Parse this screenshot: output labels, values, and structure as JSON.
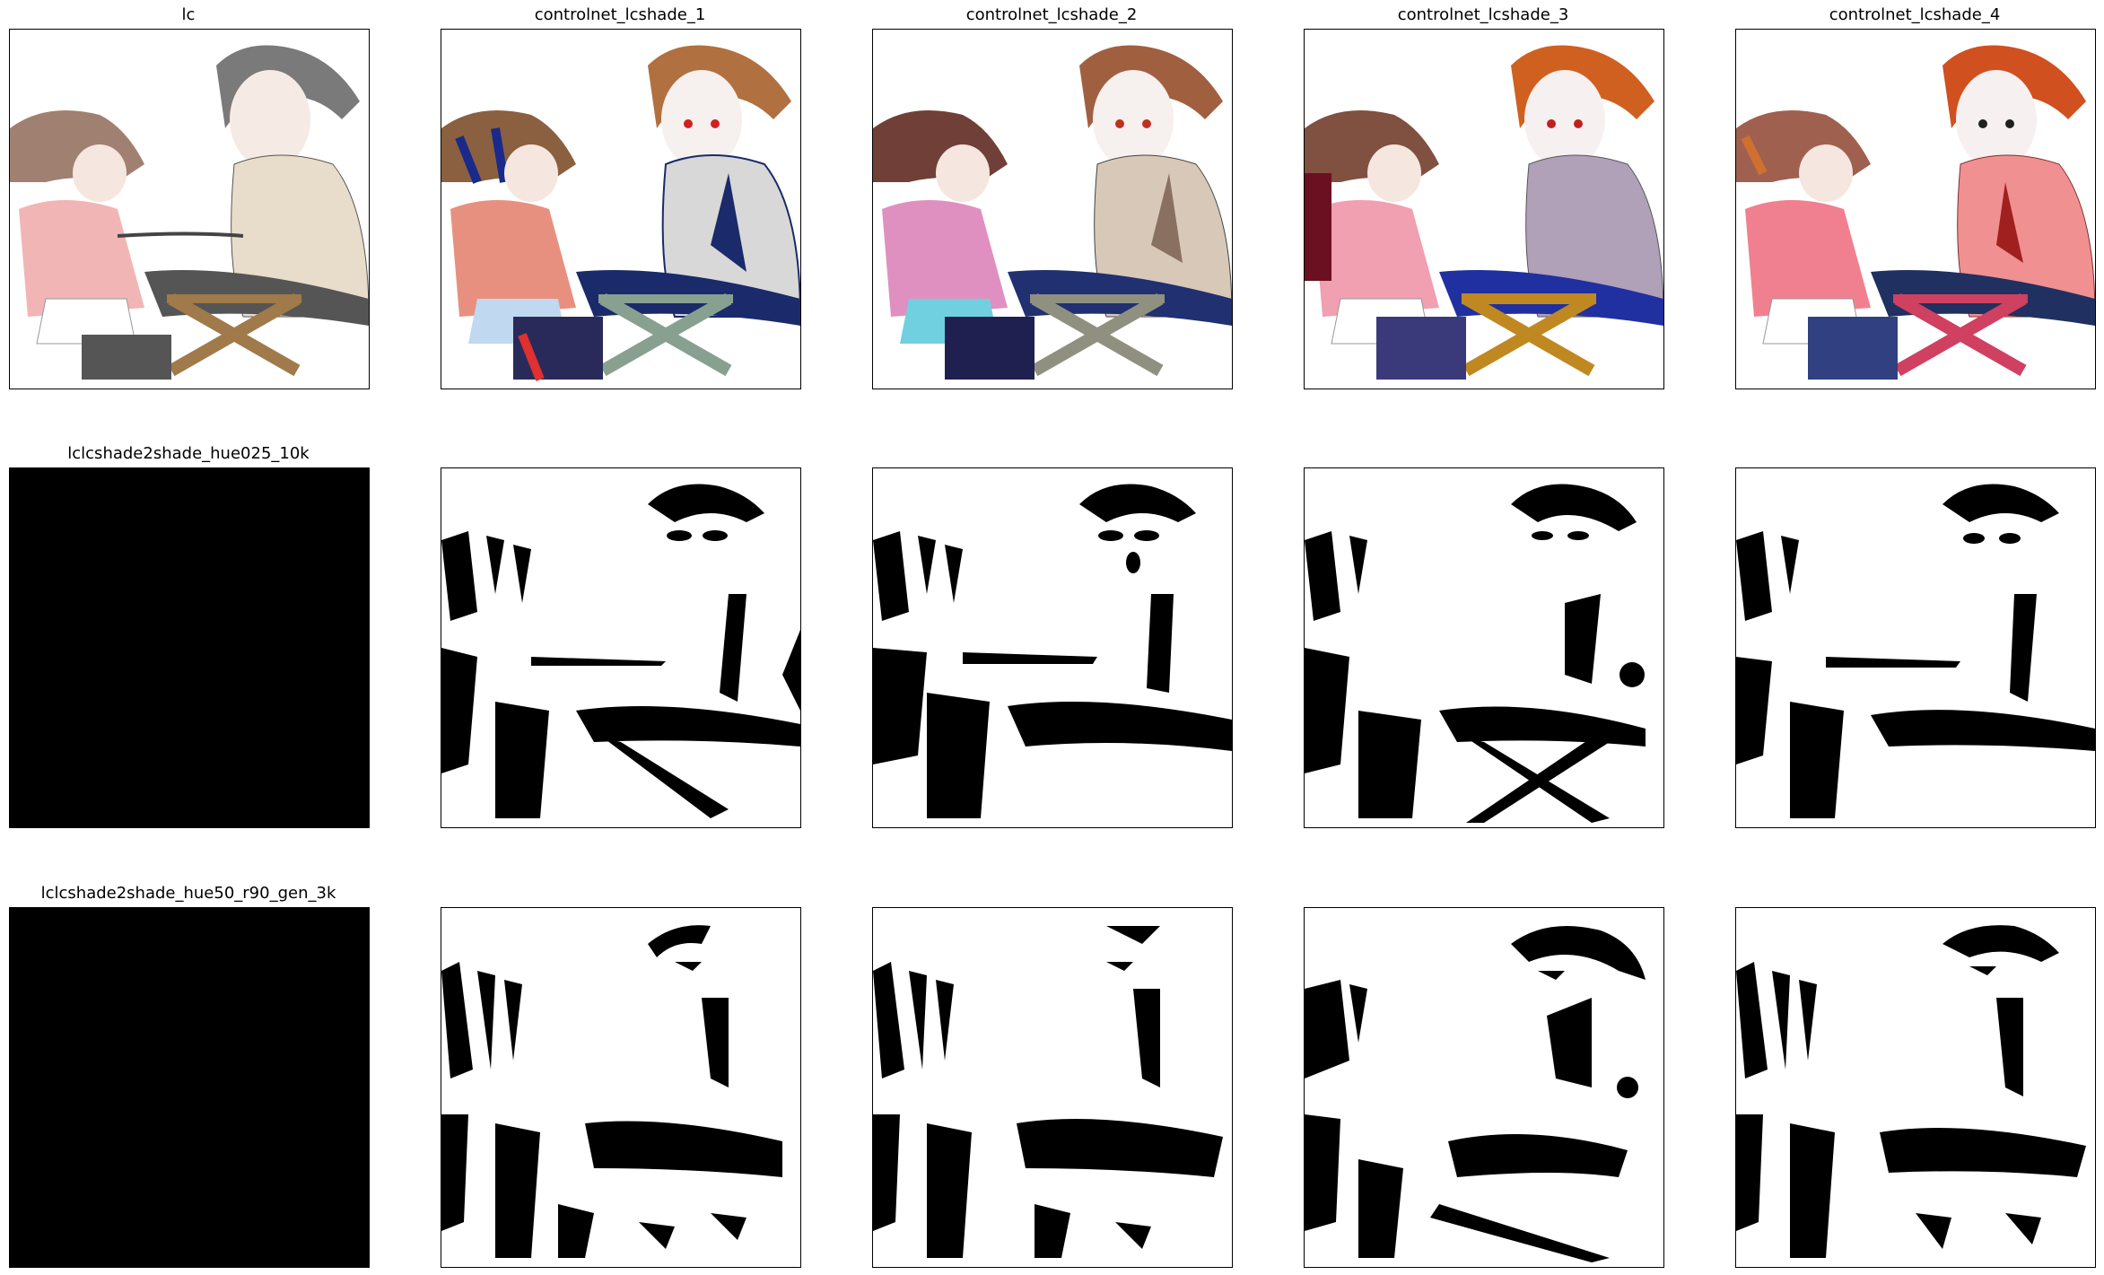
{
  "figure": {
    "columns": [
      "lc",
      "controlnet_lcshade_1",
      "controlnet_lcshade_2",
      "controlnet_lcshade_3",
      "controlnet_lcshade_4"
    ],
    "row_labels": [
      "",
      "lclcshade2shade_hue025_10k",
      "lclcshade2shade_hue50_r90_gen_3k"
    ],
    "palettes": {
      "lc": {
        "hair1": "#a08070",
        "hair2": "#7a7a7a",
        "shirt": "#e8dccb",
        "pants": "#555555",
        "dress": "#f2b5b5",
        "stool": "#a07a4a"
      },
      "controlnet_lcshade_1": {
        "hair1": "#8a6040",
        "hair2": "#b07040",
        "shirt": "#d8d8d8",
        "pants": "#1a2a6a",
        "dress": "#e89080",
        "stool": "#88a090"
      },
      "controlnet_lcshade_2": {
        "hair1": "#704038",
        "hair2": "#a06040",
        "shirt": "#d8c8b8",
        "pants": "#203070",
        "dress": "#e090c0",
        "stool": "#909080"
      },
      "controlnet_lcshade_3": {
        "hair1": "#805040",
        "hair2": "#d06020",
        "shirt": "#b0a0b8",
        "pants": "#2030a0",
        "dress": "#f0a0b0",
        "stool": "#c08820"
      },
      "controlnet_lcshade_4": {
        "hair1": "#a06050",
        "hair2": "#d05020",
        "shirt": "#f09090",
        "pants": "#203060",
        "dress": "#f08090",
        "stool": "#d04060"
      }
    }
  }
}
